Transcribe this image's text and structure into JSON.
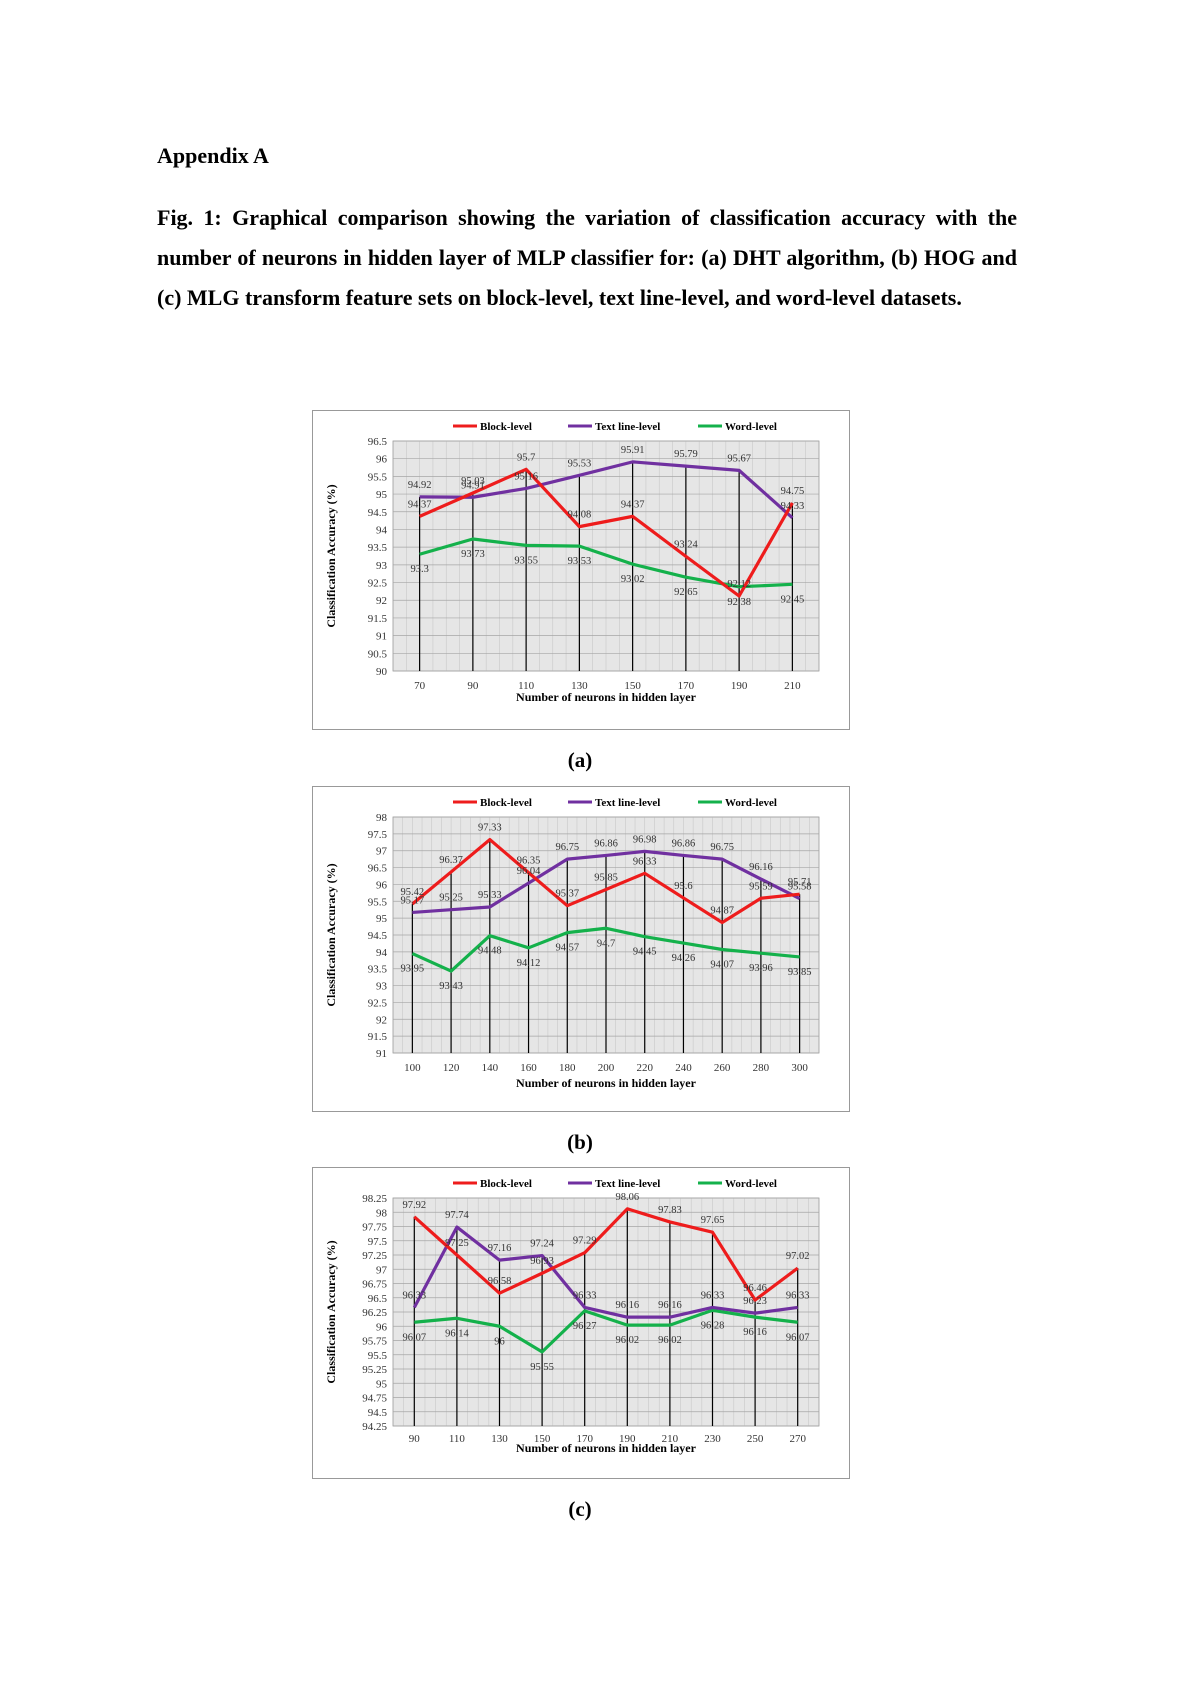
{
  "heading": "Appendix A",
  "caption": "Fig. 1: Graphical comparison showing the variation of classification accuracy with the number of neurons in hidden layer of MLP classifier for: (a) DHT algorithm, (b) HOG and (c) MLG transform feature sets on block-level, text line-level, and word-level datasets.",
  "colors": {
    "block": "#ee1c1c",
    "text": "#7030a0",
    "word": "#14b14b",
    "plot_bg": "#e6e6e6",
    "grid": "#a6a6a6"
  },
  "chart_data": [
    {
      "id": "a",
      "sublabel": "(a)",
      "type": "line",
      "title": "",
      "xlabel": "Number of neurons in hidden layer",
      "ylabel": "Classification Accuracy (%)",
      "ylim": [
        90,
        96.5
      ],
      "ystep": 0.5,
      "yticks": [
        "90",
        "90.5",
        "91",
        "91.5",
        "92",
        "92.5",
        "93",
        "93.5",
        "94",
        "94.5",
        "95",
        "95.5",
        "96",
        "96.5"
      ],
      "categories": [
        "70",
        "90",
        "110",
        "130",
        "150",
        "170",
        "190",
        "210"
      ],
      "legend": [
        "Block-level",
        "Text line-level",
        "Word-level"
      ],
      "legend_position": "top",
      "series": [
        {
          "name": "Block-level",
          "key": "block",
          "values": [
            94.37,
            95.03,
            95.7,
            94.08,
            94.37,
            93.24,
            92.12,
            94.75
          ],
          "labels": [
            "94.37",
            "95.03",
            "95.7",
            "94.08",
            "94.37",
            "93.24",
            "92.12",
            "94.75"
          ]
        },
        {
          "name": "Text line-level",
          "key": "text",
          "values": [
            94.92,
            94.91,
            95.16,
            95.53,
            95.91,
            95.79,
            95.67,
            94.33
          ],
          "labels": [
            "94.92",
            "94.91",
            "95.16",
            "95.53",
            "95.91",
            "95.79",
            "95.67",
            "94.33"
          ]
        },
        {
          "name": "Word-level",
          "key": "word",
          "values": [
            93.3,
            93.73,
            93.55,
            93.53,
            93.02,
            92.65,
            92.38,
            92.45
          ],
          "labels": [
            "93.3",
            "93.73",
            "93.55",
            "93.53",
            "93.02",
            "92.65",
            "92.38",
            "92.45"
          ]
        }
      ]
    },
    {
      "id": "b",
      "sublabel": "(b)",
      "type": "line",
      "title": "",
      "xlabel": "Number of neurons in hidden layer",
      "ylabel": "Classification Accuracy (%)",
      "ylim": [
        91,
        98
      ],
      "ystep": 0.5,
      "yticks": [
        "91",
        "91.5",
        "92",
        "92.5",
        "93",
        "93.5",
        "94",
        "94.5",
        "95",
        "95.5",
        "96",
        "96.5",
        "97",
        "97.5",
        "98"
      ],
      "categories": [
        "100",
        "120",
        "140",
        "160",
        "180",
        "200",
        "220",
        "240",
        "260",
        "280",
        "300"
      ],
      "legend": [
        "Block-level",
        "Text line-level",
        "Word-level"
      ],
      "legend_position": "top",
      "series": [
        {
          "name": "Block-level",
          "key": "block",
          "values": [
            95.42,
            96.37,
            97.33,
            96.35,
            95.37,
            95.85,
            96.33,
            95.6,
            94.87,
            95.59,
            95.71
          ],
          "labels": [
            "95.42",
            "96.37",
            "97.33",
            "96.35",
            "95.37",
            "95.85",
            "96.33",
            "95.6",
            "94.87",
            "95.59",
            "95.71"
          ]
        },
        {
          "name": "Text line-level",
          "key": "text",
          "values": [
            95.17,
            95.25,
            95.33,
            96.04,
            96.75,
            96.86,
            96.98,
            96.86,
            96.75,
            96.16,
            95.58
          ],
          "labels": [
            "95.17",
            "95.25",
            "95.33",
            "96.04",
            "96.75",
            "96.86",
            "96.98",
            "96.86",
            "96.75",
            "96.16",
            "95.58"
          ]
        },
        {
          "name": "Word-level",
          "key": "word",
          "values": [
            93.95,
            93.43,
            94.48,
            94.12,
            94.57,
            94.7,
            94.45,
            94.26,
            94.07,
            93.96,
            93.85
          ],
          "labels": [
            "93.95",
            "93.43",
            "94.48",
            "94.12",
            "94.57",
            "94.7",
            "94.45",
            "94.26",
            "94.07",
            "93.96",
            "93.85"
          ]
        }
      ]
    },
    {
      "id": "c",
      "sublabel": "(c)",
      "type": "line",
      "title": "",
      "xlabel": "Number of neurons in hidden layer",
      "ylabel": "Classification Accuracy (%)",
      "ylim": [
        94.25,
        98.25
      ],
      "ystep": 0.25,
      "yticks": [
        "94.25",
        "94.5",
        "94.75",
        "95",
        "95.25",
        "95.5",
        "95.75",
        "96",
        "96.25",
        "96.5",
        "96.75",
        "97",
        "97.25",
        "97.5",
        "97.75",
        "98",
        "98.25"
      ],
      "categories": [
        "90",
        "110",
        "130",
        "150",
        "170",
        "190",
        "210",
        "230",
        "250",
        "270"
      ],
      "legend": [
        "Block-level",
        "Text line-level",
        "Word-level"
      ],
      "legend_position": "top",
      "series": [
        {
          "name": "Block-level",
          "key": "block",
          "values": [
            97.92,
            97.25,
            96.58,
            96.93,
            97.29,
            98.06,
            97.83,
            97.65,
            96.46,
            97.02
          ],
          "labels": [
            "97.92",
            "97.25",
            "96.58",
            "96.93",
            "97.29",
            "98.06",
            "97.83",
            "97.65",
            "96.46",
            "97.02"
          ]
        },
        {
          "name": "Text line-level",
          "key": "text",
          "values": [
            96.33,
            97.74,
            97.16,
            97.24,
            96.33,
            96.16,
            96.16,
            96.33,
            96.23,
            96.33
          ],
          "labels": [
            "96.33",
            "97.74",
            "97.16",
            "97.24",
            "96.33",
            "96.16",
            "96.16",
            "96.33",
            "96.23",
            "96.33"
          ]
        },
        {
          "name": "Word-level",
          "key": "word",
          "values": [
            96.07,
            96.14,
            96,
            95.55,
            96.27,
            96.02,
            96.02,
            96.28,
            96.16,
            96.07
          ],
          "labels": [
            "96.07",
            "96.14",
            "96",
            "95.55",
            "96.27",
            "96.02",
            "96.02",
            "96.28",
            "96.16",
            "96.07"
          ]
        }
      ]
    }
  ]
}
